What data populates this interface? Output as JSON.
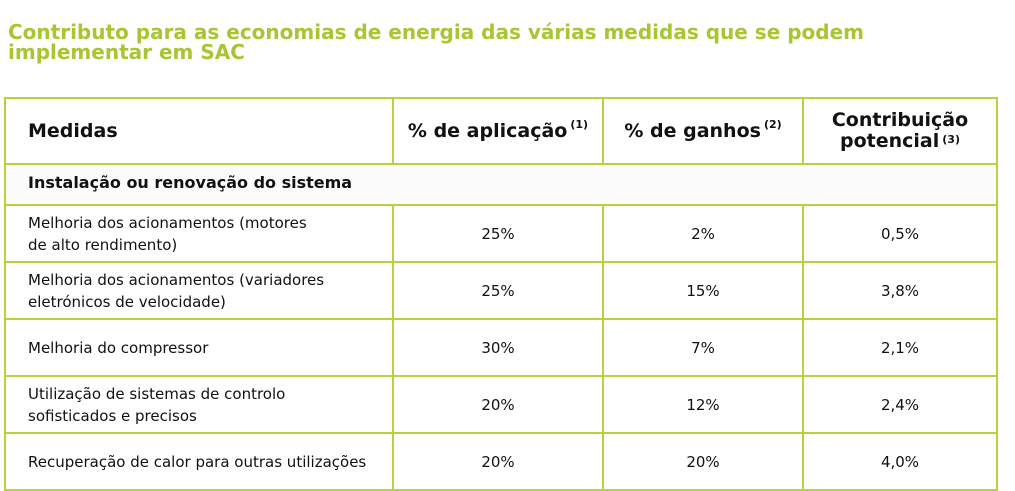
{
  "title": {
    "line1": "Contributo para as economias de energia das várias medidas que se podem",
    "line2": "implementar em SAC"
  },
  "table": {
    "headers": {
      "medidas": "Medidas",
      "aplicacao": "% de aplicação",
      "aplicacao_note": "(1)",
      "ganhos": "% de ganhos",
      "ganhos_note": "(2)",
      "contribuicao_line1": "Contribuição",
      "contribuicao_line2": "potencial",
      "contribuicao_note": "(3)"
    },
    "section": "Instalação ou renovação do sistema",
    "rows": [
      {
        "medida_line1": "Melhoria dos acionamentos (motores",
        "medida_line2": "de alto rendimento)",
        "aplicacao": "25%",
        "ganhos": "2%",
        "contribuicao": "0,5%"
      },
      {
        "medida_line1": "Melhoria dos acionamentos (variadores",
        "medida_line2": "eletrónicos de velocidade)",
        "aplicacao": "25%",
        "ganhos": "15%",
        "contribuicao": "3,8%"
      },
      {
        "medida_line1": "Melhoria do compressor",
        "medida_line2": "",
        "aplicacao": "30%",
        "ganhos": "7%",
        "contribuicao": "2,1%"
      },
      {
        "medida_line1": "Utilização de sistemas de controlo",
        "medida_line2": "sofisticados e precisos",
        "aplicacao": "20%",
        "ganhos": "12%",
        "contribuicao": "2,4%"
      },
      {
        "medida_line1": "Recuperação de calor para outras utilizações",
        "medida_line2": "",
        "aplicacao": "20%",
        "ganhos": "20%",
        "contribuicao": "4,0%"
      }
    ]
  },
  "colors": {
    "title": "#a7c631",
    "table_border": "#b6d33c",
    "text": "#111111"
  }
}
